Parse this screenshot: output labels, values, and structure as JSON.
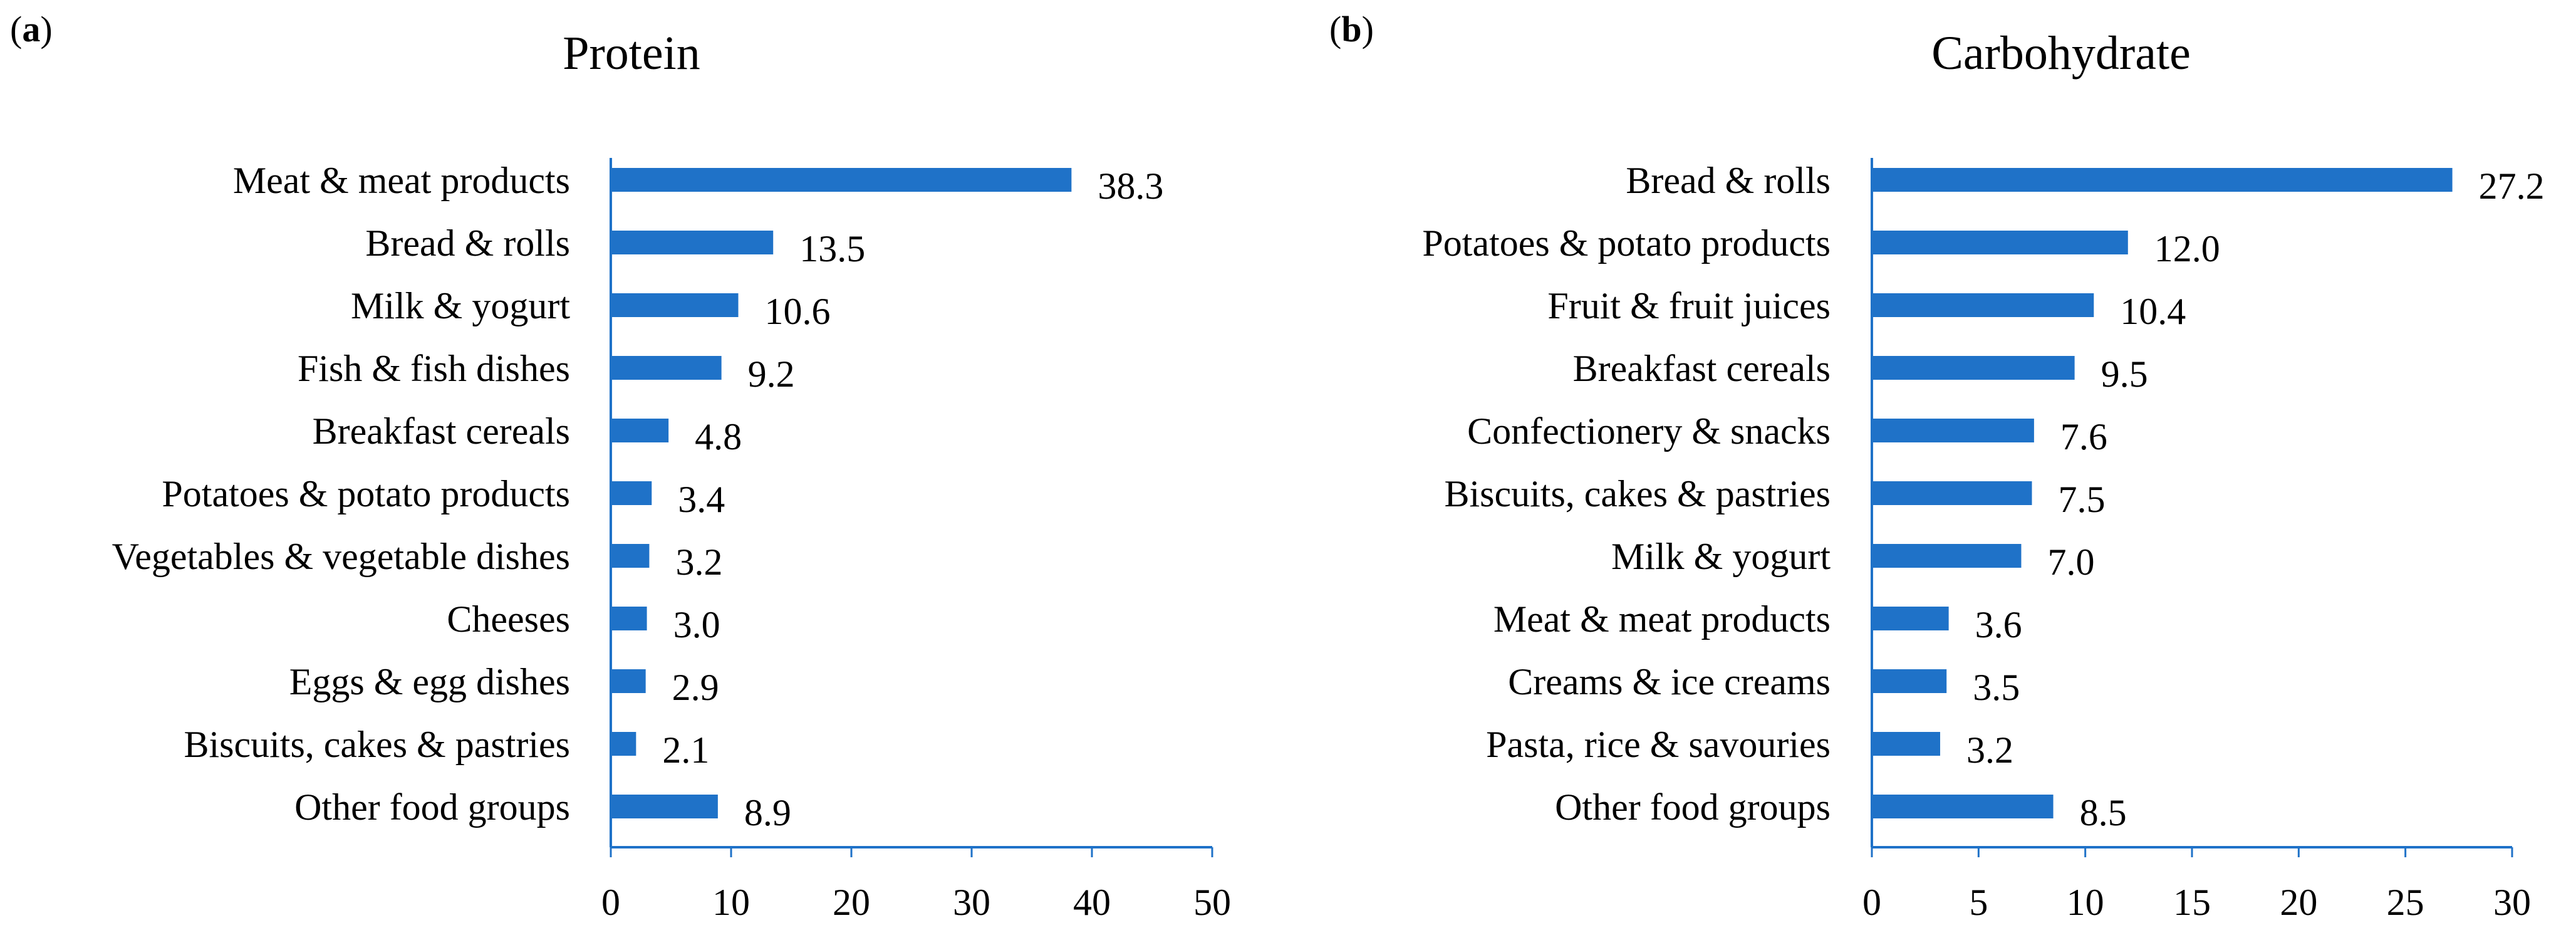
{
  "figure": {
    "background": "#ffffff",
    "bar_color": "#1f72c8",
    "axis_color": "#1f72c8"
  },
  "chart_data": [
    {
      "panel": "a",
      "type": "bar",
      "orientation": "horizontal",
      "title": "Protein",
      "categories": [
        "Meat & meat products",
        "Bread & rolls",
        "Milk & yogurt",
        "Fish & fish dishes",
        "Breakfast cereals",
        "Potatoes & potato products",
        "Vegetables & vegetable dishes",
        "Cheeses",
        "Eggs & egg dishes",
        "Biscuits, cakes & pastries",
        "Other food groups"
      ],
      "values": [
        38.3,
        13.5,
        10.6,
        9.2,
        4.8,
        3.4,
        3.2,
        3.0,
        2.9,
        2.1,
        8.9
      ],
      "value_labels": [
        "38.3",
        "13.5",
        "10.6",
        "9.2",
        "4.8",
        "3.4",
        "3.2",
        "3.0",
        "2.9",
        "2.1",
        "8.9"
      ],
      "xlim": [
        0,
        50
      ],
      "xticks": [
        0,
        10,
        20,
        30,
        40,
        50
      ],
      "xlabel": "",
      "ylabel": "",
      "grid": false
    },
    {
      "panel": "b",
      "type": "bar",
      "orientation": "horizontal",
      "title": "Carbohydrate",
      "categories": [
        "Bread & rolls",
        "Potatoes & potato products",
        "Fruit & fruit juices",
        "Breakfast cereals",
        "Confectionery & snacks",
        "Biscuits, cakes & pastries",
        "Milk & yogurt",
        "Meat & meat products",
        "Creams & ice creams",
        "Pasta, rice & savouries",
        "Other food groups"
      ],
      "values": [
        27.2,
        12.0,
        10.4,
        9.5,
        7.6,
        7.5,
        7.0,
        3.6,
        3.5,
        3.2,
        8.5
      ],
      "value_labels": [
        "27.2",
        "12.0",
        "10.4",
        "9.5",
        "7.6",
        "7.5",
        "7.0",
        "3.6",
        "3.5",
        "3.2",
        "8.5"
      ],
      "xlim": [
        0,
        30
      ],
      "xticks": [
        0,
        5,
        10,
        15,
        20,
        25,
        30
      ],
      "xlabel": "",
      "ylabel": "",
      "grid": false
    }
  ]
}
